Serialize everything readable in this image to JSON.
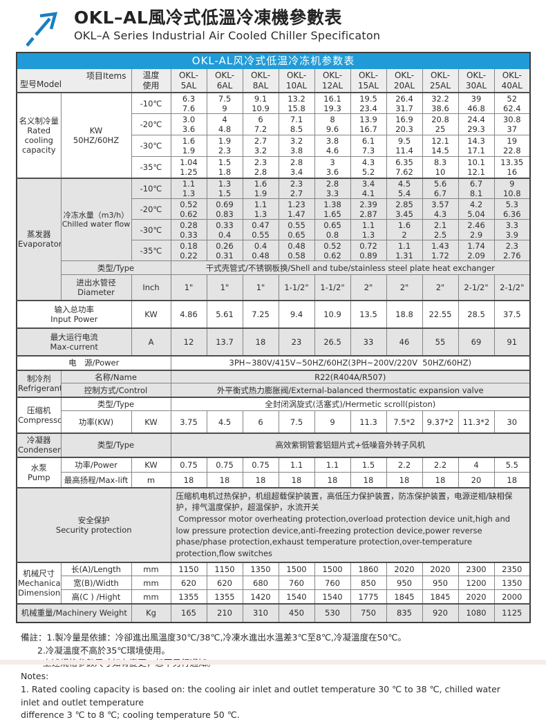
{
  "page": {
    "title_zh": "OKL–AL風冷式低溫冷凍機參數表",
    "title_en": "OKL–A Series Industrial Air Cooled Chiller Specificaton"
  },
  "banner": {
    "title": "OKL-AL风冷式低温冷冻机参数表"
  },
  "colors": {
    "accent": "#219bd8",
    "logo_blue": "#1a7ec4",
    "band_gray": "#e4e4e4",
    "header_gray": "#ededed"
  },
  "icons": {
    "logo": "arrow-up-right-icon"
  },
  "table": {
    "corner": {
      "model": "型号Model",
      "items": "项目Items"
    },
    "temp_header": {
      "line1": "温度",
      "line2": "使用"
    },
    "model_prefix": "OKL-",
    "model_codes": [
      "5AL",
      "6AL",
      "8AL",
      "10AL",
      "12AL",
      "15AL",
      "20AL",
      "25AL",
      "30AL",
      "40AL"
    ],
    "rated": {
      "label_zh": "名义制冷量",
      "label_en1": "Rated",
      "label_en2": "cooling",
      "label_en3": "capacity",
      "unit_line1": "KW",
      "unit_line2": "50HZ/60HZ",
      "rows": [
        {
          "temp": "-10℃",
          "hz50": [
            "6.3",
            "7.5",
            "9.1",
            "13.2",
            "16.1",
            "19.5",
            "26.4",
            "32.2",
            "39",
            "52"
          ],
          "hz60": [
            "7.6",
            "9",
            "10.9",
            "15.8",
            "19.3",
            "23.4",
            "31.7",
            "38.6",
            "46.8",
            "62.4"
          ]
        },
        {
          "temp": "-20℃",
          "hz50": [
            "3.0",
            "4",
            "6",
            "7.1",
            "8",
            "13.9",
            "16.9",
            "20.8",
            "24.4",
            "30.8"
          ],
          "hz60": [
            "3.6",
            "4.8",
            "7.2",
            "8.5",
            "9.6",
            "16.7",
            "20.3",
            "25",
            "29.3",
            "37"
          ]
        },
        {
          "temp": "-30℃",
          "hz50": [
            "1.6",
            "1.9",
            "2.7",
            "3.2",
            "3.8",
            "6.1",
            "9.5",
            "12.1",
            "14.3",
            "19"
          ],
          "hz60": [
            "1.9",
            "2.3",
            "3.2",
            "3.8",
            "4.6",
            "7.3",
            "11.4",
            "14.5",
            "17.1",
            "22.8"
          ]
        },
        {
          "temp": "-35℃",
          "hz50": [
            "1.04",
            "1.5",
            "2.3",
            "2.8",
            "3",
            "4.3",
            "6.35",
            "8.3",
            "10.1",
            "13.35"
          ],
          "hz60": [
            "1.25",
            "1.8",
            "2.8",
            "3.4",
            "3.6",
            "5.2",
            "7.62",
            "10",
            "12.1",
            "16"
          ]
        }
      ]
    },
    "evaporator": {
      "label_zh": "蒸发器",
      "label_en": "Evaporator",
      "flow_label_zh": "冷冻水量（m3/h）",
      "flow_label_en": "Chilled water flow",
      "rows": [
        {
          "temp": "-10℃",
          "hz50": [
            "1.1",
            "1.3",
            "1.6",
            "2.3",
            "2.8",
            "3.4",
            "4.5",
            "5.6",
            "6.7",
            "9"
          ],
          "hz60": [
            "1.3",
            "1.5",
            "1.9",
            "2.7",
            "3.3",
            "4.1",
            "5.4",
            "6.7",
            "8.1",
            "10.8"
          ]
        },
        {
          "temp": "-20℃",
          "hz50": [
            "0.52",
            "0.69",
            "1.1",
            "1.23",
            "1.38",
            "2.39",
            "2.85",
            "3.57",
            "4.2",
            "5.3"
          ],
          "hz60": [
            "0.62",
            "0.83",
            "1.3",
            "1.47",
            "1.65",
            "2.87",
            "3.45",
            "4.3",
            "5.04",
            "6.36"
          ]
        },
        {
          "temp": "-30℃",
          "hz50": [
            "0.28",
            "0.33",
            "0.47",
            "0.55",
            "0.65",
            "1.1",
            "1.6",
            "2.1",
            "2.46",
            "3.3"
          ],
          "hz60": [
            "0.33",
            "0.4",
            "0.55",
            "0.65",
            "0.8",
            "1.3",
            "2",
            "2.5",
            "2.9",
            "3.9"
          ]
        },
        {
          "temp": "-35℃",
          "hz50": [
            "0.18",
            "0.26",
            "0.4",
            "0.48",
            "0.52",
            "0.72",
            "1.1",
            "1.43",
            "1.74",
            "2.3"
          ],
          "hz60": [
            "0.22",
            "0.31",
            "0.48",
            "0.58",
            "0.62",
            "0.89",
            "1.31",
            "1.72",
            "2.09",
            "2.76"
          ]
        }
      ],
      "type_label": "类型/Type",
      "type_value": "干式壳管式/不锈钢板换/Shell and tube/stainless steel plate heat exchanger",
      "diameter_label_zh": "进出水管径",
      "diameter_label_en": "Diameter",
      "diameter_unit": "Inch",
      "diameters": [
        "1\"",
        "1\"",
        "1\"",
        "1-1/2\"",
        "1-1/2\"",
        "2\"",
        "2\"",
        "2\"",
        "2-1/2\"",
        "2-1/2\""
      ]
    },
    "input_power": {
      "label_zh": "输入总功率",
      "label_en": "Input Power",
      "unit": "KW",
      "values": [
        "4.86",
        "5.61",
        "7.25",
        "9.4",
        "10.9",
        "13.5",
        "18.8",
        "22.55",
        "28.5",
        "37.5"
      ]
    },
    "max_current": {
      "label_zh": "最大运行电流",
      "label_en": "Max-current",
      "unit": "A",
      "values": [
        "12",
        "13.7",
        "18",
        "23",
        "26.5",
        "33",
        "46",
        "55",
        "69",
        "91"
      ]
    },
    "power_source": {
      "label": "电　源/Power",
      "value": "3PH~380V/415V~50HZ/60HZ(3PH~200V/220V  50HZ/60HZ)"
    },
    "refrigerant": {
      "label_zh": "制冷剂",
      "label_en": "Refrigerant",
      "name_label": "名称/Name",
      "name_value": "R22(R404A/R507)",
      "control_label": "控制方式/Control",
      "control_value": "外平衡式热力膨胀阀/External-balanced thermostatic expansion valve"
    },
    "compressor": {
      "label_zh": "压缩机",
      "label_en": "Compressor",
      "type_label": "类型/Type",
      "type_value": "全封闭涡旋式(活塞式)/Hermetic scroll(piston)",
      "power_label": "功率(KW)",
      "power_unit": "KW",
      "power_values": [
        "3.75",
        "4.5",
        "6",
        "7.5",
        "9",
        "11.3",
        "7.5*2",
        "9.37*2",
        "11.3*2",
        "30"
      ]
    },
    "condenser": {
      "label_zh": "冷凝器",
      "label_en": "Condenser",
      "type_label": "类型/Type",
      "type_value": "高效紫铜管套铝翅片式+低噪音外转子风机"
    },
    "pump": {
      "label_zh": "水泵",
      "label_en": "Pump",
      "power_label": "功率/Power",
      "power_unit": "KW",
      "power_values": [
        "0.75",
        "0.75",
        "0.75",
        "1.1",
        "1.1",
        "1.5",
        "2.2",
        "2.2",
        "4",
        "5.5"
      ],
      "lift_label": "最高扬程/Max-lift",
      "lift_unit": "m",
      "lift_values": [
        "18",
        "18",
        "18",
        "18",
        "18",
        "18",
        "18",
        "18",
        "20",
        "18"
      ]
    },
    "security": {
      "label_zh": "安全保护",
      "label_en": "Security protection",
      "text_zh": "压缩机电机过热保护，机组超载保护装置，高低压力保护装置，防冻保护装置，电源逆相/缺相保护，排气温度保护，超温保护，水流开关",
      "text_en": " Compressor motor overheating protection,overload protection device unit,high and low pressure protection device,anti-freezing protection device,power reverse phase/phase protection,exhaust temperature protection,over-temperature protection,flow switches"
    },
    "dimensions": {
      "label_zh": "机械尺寸",
      "label_en1": "Mechanical",
      "label_en2": "Dimensions",
      "rows": [
        {
          "label": "长(A)/Length",
          "unit": "mm",
          "values": [
            "1150",
            "1150",
            "1350",
            "1500",
            "1500",
            "1860",
            "2020",
            "2020",
            "2300",
            "2350"
          ]
        },
        {
          "label": "宽(B)/Width",
          "unit": "mm",
          "values": [
            "620",
            "620",
            "680",
            "760",
            "760",
            "850",
            "950",
            "950",
            "1200",
            "1350"
          ]
        },
        {
          "label": "高(C ) /Hight",
          "unit": "mm",
          "values": [
            "1355",
            "1355",
            "1420",
            "1540",
            "1540",
            "1775",
            "1845",
            "1845",
            "2020",
            "2000"
          ]
        }
      ]
    },
    "weight": {
      "label": "机械重量/Machinery Weight",
      "unit": "Kg",
      "values": [
        "165",
        "210",
        "310",
        "450",
        "530",
        "750",
        "835",
        "920",
        "1080",
        "1125"
      ]
    }
  },
  "notes": {
    "zh1": "備註：1.製冷量是依據：冷卻進出風溫度30℃/38℃,冷凍水進出水溫差3℃至8℃,冷凝溫度在50℃。",
    "zh2": "2.冷凝溫度不高於35℃環境使用。",
    "zh3": "上述規格參數尺寸如有變更，恕不另行通知。",
    "en_title": "Notes:",
    "en1": "1. Rated cooling capacity is based on: the cooling air inlet and outlet temperature 30 ℃ to 38 ℃, chilled water inlet and outlet temperature",
    "en2": "difference 3 ℃ to 8 ℃; cooling temperature 50 ℃."
  }
}
